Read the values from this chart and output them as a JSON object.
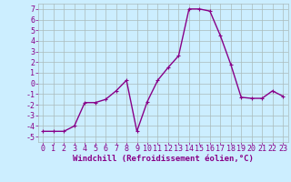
{
  "x": [
    0,
    1,
    2,
    3,
    4,
    5,
    6,
    7,
    8,
    9,
    10,
    11,
    12,
    13,
    14,
    15,
    16,
    17,
    18,
    19,
    20,
    21,
    22,
    23
  ],
  "y": [
    -4.5,
    -4.5,
    -4.5,
    -4.0,
    -1.8,
    -1.8,
    -1.5,
    -0.7,
    0.3,
    -4.5,
    -1.7,
    0.3,
    1.5,
    2.6,
    7.0,
    7.0,
    6.8,
    4.5,
    1.8,
    -1.3,
    -1.4,
    -1.4,
    -0.7,
    -1.2
  ],
  "line_color": "#880088",
  "marker": "+",
  "marker_size": 3,
  "bg_color": "#cceeff",
  "grid_color": "#aabbbb",
  "xlabel": "Windchill (Refroidissement éolien,°C)",
  "ylim": [
    -5.5,
    7.5
  ],
  "xlim": [
    -0.5,
    23.5
  ],
  "yticks": [
    -5,
    -4,
    -3,
    -2,
    -1,
    0,
    1,
    2,
    3,
    4,
    5,
    6,
    7
  ],
  "xticks": [
    0,
    1,
    2,
    3,
    4,
    5,
    6,
    7,
    8,
    9,
    10,
    11,
    12,
    13,
    14,
    15,
    16,
    17,
    18,
    19,
    20,
    21,
    22,
    23
  ],
  "xlabel_fontsize": 6.5,
  "tick_fontsize": 6.0,
  "line_width": 1.0,
  "label_color": "#880088"
}
